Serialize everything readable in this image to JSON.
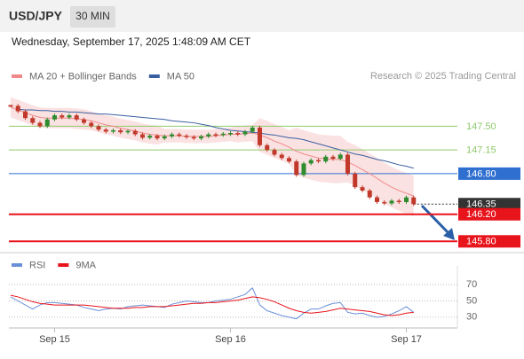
{
  "header": {
    "symbol": "USD/JPY",
    "timeframe": "30 MIN",
    "timestamp": "Wednesday, September 17, 2025 1:48:09 AM CET",
    "source": "Research © 2025 Trading Central"
  },
  "chart_data": [
    {
      "type": "candlestick",
      "ylim": [
        145.66,
        148.12
      ],
      "close": [
        147.8,
        147.72,
        147.62,
        147.55,
        147.5,
        147.6,
        147.66,
        147.63,
        147.66,
        147.6,
        147.55,
        147.5,
        147.45,
        147.42,
        147.44,
        147.41,
        147.43,
        147.38,
        147.33,
        147.36,
        147.32,
        147.35,
        147.38,
        147.36,
        147.34,
        147.32,
        147.35,
        147.38,
        147.37,
        147.39,
        147.4,
        147.38,
        147.42,
        147.48,
        147.22,
        147.15,
        147.08,
        147.03,
        146.98,
        146.78,
        146.95,
        147.0,
        146.98,
        147.05,
        147.02,
        147.08,
        146.8,
        146.6,
        146.55,
        146.45,
        146.38,
        146.36,
        146.4,
        146.38,
        146.45,
        146.35
      ],
      "up_color": "#2e8b2e",
      "down_color": "#c0392b",
      "series": [
        {
          "name": "MA 20 + Bollinger Bands",
          "color": "#f08a8a",
          "values": [
            147.78,
            147.74,
            147.7,
            147.66,
            147.63,
            147.62,
            147.62,
            147.62,
            147.62,
            147.61,
            147.6,
            147.58,
            147.55,
            147.52,
            147.5,
            147.47,
            147.45,
            147.43,
            147.4,
            147.38,
            147.37,
            147.36,
            147.36,
            147.36,
            147.35,
            147.35,
            147.35,
            147.35,
            147.36,
            147.37,
            147.38,
            147.38,
            147.39,
            147.4,
            147.37,
            147.33,
            147.28,
            147.24,
            147.19,
            147.13,
            147.09,
            147.06,
            147.03,
            147.02,
            147.01,
            147.01,
            146.97,
            146.92,
            146.86,
            146.8,
            146.73,
            146.66,
            146.6,
            146.55,
            146.51,
            146.47
          ],
          "upper": [
            147.93,
            147.89,
            147.85,
            147.81,
            147.78,
            147.77,
            147.77,
            147.77,
            147.77,
            147.76,
            147.75,
            147.72,
            147.69,
            147.66,
            147.64,
            147.61,
            147.59,
            147.57,
            147.54,
            147.52,
            147.51,
            147.46,
            147.46,
            147.46,
            147.45,
            147.45,
            147.45,
            147.45,
            147.46,
            147.47,
            147.48,
            147.5,
            147.51,
            147.52,
            147.62,
            147.58,
            147.53,
            147.49,
            147.44,
            147.48,
            147.44,
            147.41,
            147.38,
            147.37,
            147.36,
            147.36,
            147.27,
            147.22,
            147.16,
            147.1,
            147.03,
            146.96,
            146.9,
            146.85,
            146.81,
            146.77
          ],
          "lower": [
            147.63,
            147.59,
            147.55,
            147.51,
            147.48,
            147.47,
            147.47,
            147.47,
            147.47,
            147.46,
            147.45,
            147.44,
            147.41,
            147.38,
            147.36,
            147.33,
            147.31,
            147.29,
            147.26,
            147.24,
            147.23,
            147.26,
            147.26,
            147.26,
            147.25,
            147.25,
            147.25,
            147.25,
            147.26,
            147.27,
            147.28,
            147.26,
            147.27,
            147.28,
            147.12,
            147.08,
            147.03,
            146.99,
            146.94,
            146.78,
            146.74,
            146.71,
            146.68,
            146.67,
            146.66,
            146.66,
            146.67,
            146.62,
            146.56,
            146.5,
            146.43,
            146.36,
            146.3,
            146.25,
            146.21,
            146.17
          ]
        },
        {
          "name": "MA 50",
          "color": "#3a5fa0",
          "values": [
            null,
            147.75,
            147.74,
            147.74,
            147.73,
            147.73,
            147.72,
            147.72,
            147.71,
            147.71,
            147.7,
            147.69,
            147.68,
            147.68,
            147.67,
            147.66,
            147.65,
            147.64,
            147.63,
            147.62,
            147.61,
            147.6,
            147.58,
            147.57,
            147.56,
            147.55,
            147.53,
            147.51,
            147.48,
            147.46,
            147.44,
            147.43,
            147.42,
            147.41,
            147.4,
            147.38,
            147.37,
            147.35,
            147.33,
            147.32,
            147.3,
            147.27,
            147.24,
            147.21,
            147.18,
            147.15,
            147.12,
            147.09,
            147.07,
            147.04,
            147.01,
            146.99,
            146.96,
            146.93,
            146.91,
            146.88
          ]
        }
      ],
      "levels": [
        {
          "value": 147.5,
          "label": "147.50",
          "color": "#8fc96b",
          "box": false,
          "line": "solid"
        },
        {
          "value": 147.15,
          "label": "147.15",
          "color": "#8fc96b",
          "box": false,
          "line": "solid"
        },
        {
          "value": 146.8,
          "label": "146.80",
          "color": "#2f6fd0",
          "box": true,
          "line": "solid"
        },
        {
          "value": 146.35,
          "label": "146.35",
          "color": "#333333",
          "box": true,
          "line": "dotted"
        },
        {
          "value": 146.2,
          "label": "146.20",
          "color": "#e8141b",
          "box": true,
          "line": "solid"
        },
        {
          "value": 145.8,
          "label": "145.80",
          "color": "#e8141b",
          "box": true,
          "line": "solid"
        }
      ]
    },
    {
      "type": "line",
      "categories": [
        null,
        null,
        null,
        null,
        null,
        null,
        "Sep 15",
        null,
        null,
        null,
        null,
        null,
        null,
        null,
        null,
        null,
        null,
        null,
        null,
        null,
        null,
        null,
        null,
        null,
        null,
        null,
        null,
        null,
        null,
        null,
        "Sep 16",
        null,
        null,
        null,
        null,
        null,
        null,
        null,
        null,
        null,
        null,
        null,
        null,
        null,
        null,
        null,
        null,
        null,
        null,
        null,
        null,
        null,
        null,
        null,
        "Sep 17",
        null
      ],
      "ylim": [
        20,
        80
      ],
      "yticks": [
        30,
        50,
        70
      ],
      "grid": true,
      "series": [
        {
          "name": "RSI",
          "color": "#6a8fd8",
          "values": [
            55,
            50,
            45,
            40,
            45,
            48,
            48,
            47,
            46,
            45,
            42,
            40,
            38,
            40,
            41,
            40,
            43,
            44,
            45,
            44,
            43,
            42,
            46,
            48,
            50,
            49,
            48,
            48,
            50,
            51,
            52,
            55,
            58,
            66,
            45,
            38,
            35,
            32,
            30,
            28,
            35,
            40,
            40,
            44,
            47,
            48,
            36,
            34,
            35,
            32,
            30,
            31,
            34,
            38,
            43,
            36
          ]
        },
        {
          "name": "9MA",
          "color": "#e8141b",
          "values": [
            57,
            55,
            52,
            49,
            47,
            46,
            45,
            45,
            45,
            45,
            45,
            44,
            43,
            42,
            41,
            41,
            41,
            42,
            42,
            43,
            43,
            43,
            44,
            45,
            46,
            47,
            47,
            48,
            48,
            49,
            50,
            51,
            53,
            55,
            54,
            52,
            49,
            45,
            41,
            38,
            36,
            35,
            36,
            37,
            39,
            41,
            40,
            39,
            38,
            37,
            35,
            33,
            32,
            33,
            35,
            36
          ]
        }
      ]
    }
  ]
}
